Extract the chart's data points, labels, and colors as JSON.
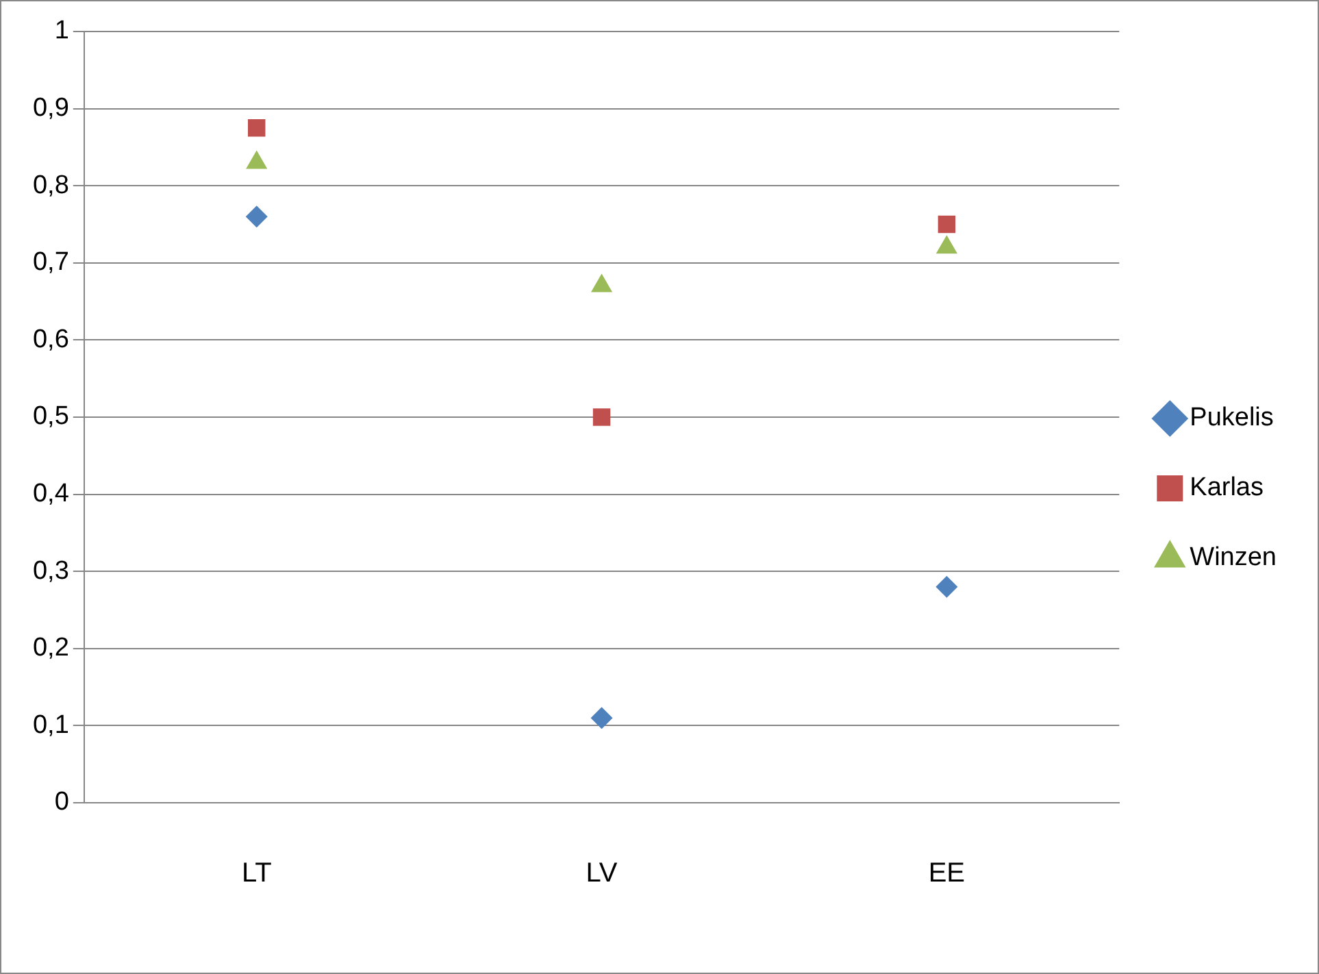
{
  "chart_data": {
    "type": "scatter",
    "categories": [
      "LT",
      "LV",
      "EE"
    ],
    "series": [
      {
        "name": "Pukelis",
        "color": "#4f81bd",
        "marker": "diamond",
        "values": [
          0.76,
          0.11,
          0.28
        ]
      },
      {
        "name": "Karlas",
        "color": "#c0504d",
        "marker": "square",
        "values": [
          0.875,
          0.5,
          0.75
        ]
      },
      {
        "name": "Winzen",
        "color": "#9bbb59",
        "marker": "triangle",
        "values": [
          0.83,
          0.67,
          0.72
        ]
      }
    ],
    "ylim": [
      0,
      1
    ],
    "yticks": [
      {
        "value": 0,
        "label": "0"
      },
      {
        "value": 0.1,
        "label": "0,1"
      },
      {
        "value": 0.2,
        "label": "0,2"
      },
      {
        "value": 0.3,
        "label": "0,3"
      },
      {
        "value": 0.4,
        "label": "0,4"
      },
      {
        "value": 0.5,
        "label": "0,5"
      },
      {
        "value": 0.6,
        "label": "0,6"
      },
      {
        "value": 0.7,
        "label": "0,7"
      },
      {
        "value": 0.8,
        "label": "0,8"
      },
      {
        "value": 0.9,
        "label": "0,9"
      },
      {
        "value": 1,
        "label": "1"
      }
    ],
    "grid": "y",
    "legend": "right"
  }
}
